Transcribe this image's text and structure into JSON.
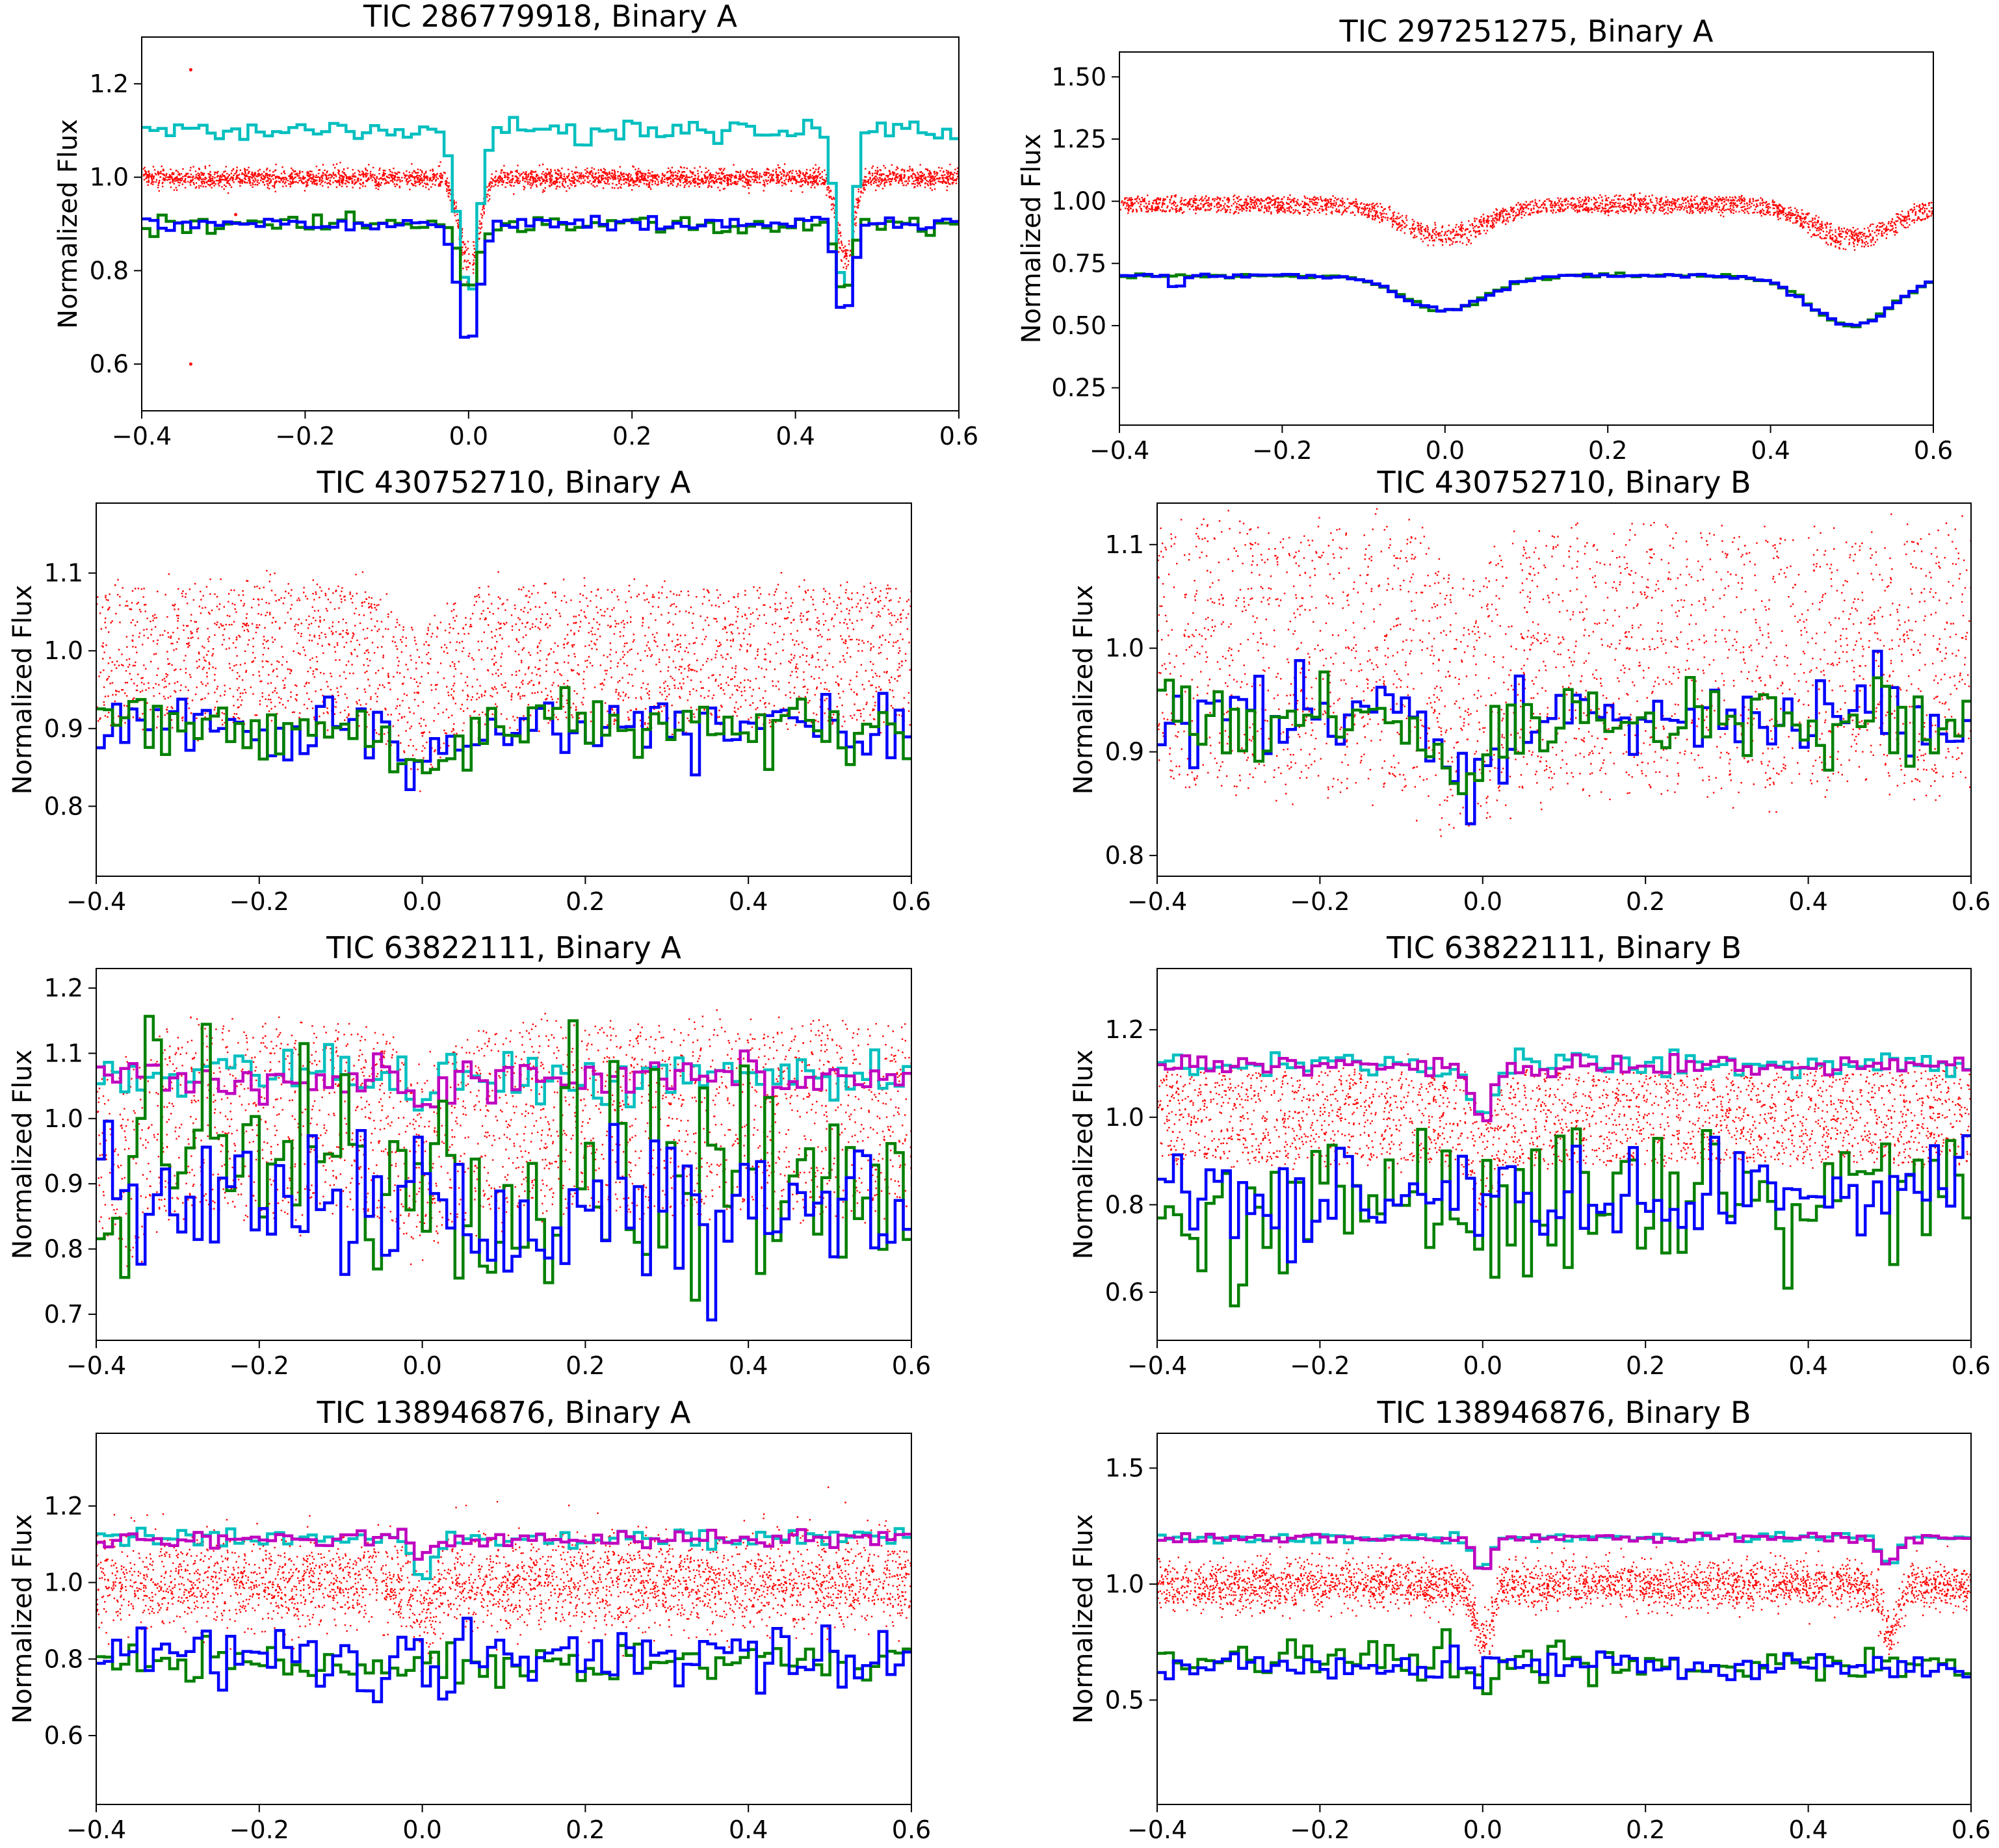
{
  "figure": {
    "colors": {
      "red_points": "#ff0000",
      "cyan": "#00bfbf",
      "blue": "#0000ff",
      "green": "#008000",
      "magenta": "#bf00bf"
    }
  },
  "chart_data": [
    {
      "type": "line",
      "title": "TIC 286779918, Binary A",
      "xlabel": "",
      "ylabel": "Normalized Flux",
      "xlim": [
        -0.4,
        0.6
      ],
      "ylim": [
        0.5,
        1.3
      ],
      "xticks": [
        "−0.4",
        "−0.2",
        "0.0",
        "0.2",
        "0.4",
        "0.6"
      ],
      "yticks": [
        {
          "v": 0.6,
          "label": "0.6"
        },
        {
          "v": 0.8,
          "label": "0.8"
        },
        {
          "v": 1.0,
          "label": "1.0"
        },
        {
          "v": 1.2,
          "label": "1.2"
        }
      ],
      "scatter": {
        "color": "red",
        "center": 1.0,
        "spread": 0.01,
        "bands": 1,
        "dips": [
          {
            "x": 0.0,
            "depth": 0.22,
            "w": 0.012
          },
          {
            "x": 0.46,
            "depth": 0.2,
            "w": 0.01
          }
        ],
        "outliers": [
          {
            "x": -0.34,
            "y": 1.23
          },
          {
            "x": -0.34,
            "y": 0.6
          },
          {
            "x": -0.285,
            "y": 0.92
          }
        ]
      },
      "series": [
        {
          "name": "cyan",
          "base": 1.1,
          "noise": 0.012,
          "dips": [
            {
              "x": 0.0,
              "depth": 0.35,
              "w": 0.012
            },
            {
              "x": 0.46,
              "depth": 0.35,
              "w": 0.01
            }
          ]
        },
        {
          "name": "green",
          "base": 0.9,
          "noise": 0.01,
          "dips": [
            {
              "x": 0.0,
              "depth": 0.15,
              "w": 0.012
            },
            {
              "x": 0.46,
              "depth": 0.15,
              "w": 0.01
            }
          ]
        },
        {
          "name": "blue",
          "base": 0.9,
          "noise": 0.008,
          "dips": [
            {
              "x": 0.0,
              "depth": 0.27,
              "w": 0.012
            },
            {
              "x": 0.46,
              "depth": 0.2,
              "w": 0.01
            }
          ]
        }
      ]
    },
    {
      "type": "line",
      "title": "TIC 297251275, Binary A",
      "xlabel": "",
      "ylabel": "Normalized Flux",
      "xlim": [
        -0.4,
        0.6
      ],
      "ylim": [
        0.1,
        1.6
      ],
      "xticks": [
        "−0.4",
        "−0.2",
        "0.0",
        "0.2",
        "0.4",
        "0.6"
      ],
      "yticks": [
        {
          "v": 0.25,
          "label": "0.25"
        },
        {
          "v": 0.5,
          "label": "0.50"
        },
        {
          "v": 0.75,
          "label": "0.75"
        },
        {
          "v": 1.0,
          "label": "1.00"
        },
        {
          "v": 1.25,
          "label": "1.25"
        },
        {
          "v": 1.5,
          "label": "1.50"
        }
      ],
      "scatter": {
        "color": "red",
        "center": 0.99,
        "spread": 0.015,
        "bands": 3,
        "dips": [
          {
            "x": 0.0,
            "depth": 0.15,
            "w": 0.05
          },
          {
            "x": 0.5,
            "depth": 0.16,
            "w": 0.05
          }
        ],
        "outliers": []
      },
      "series": [
        {
          "name": "green",
          "base": 0.7,
          "noise": 0.004,
          "dips": [
            {
              "x": 0.0,
              "depth": 0.14,
              "w": 0.05
            },
            {
              "x": 0.5,
              "depth": 0.2,
              "w": 0.05
            }
          ]
        },
        {
          "name": "blue",
          "base": 0.7,
          "noise": 0.004,
          "dips": [
            {
              "x": 0.0,
              "depth": 0.14,
              "w": 0.05
            },
            {
              "x": 0.5,
              "depth": 0.2,
              "w": 0.05
            },
            {
              "x": -0.33,
              "depth": 0.1,
              "w": 0.004
            }
          ]
        }
      ]
    },
    {
      "type": "line",
      "title": "TIC 430752710, Binary A",
      "xlabel": "",
      "ylabel": "Normalized Flux",
      "xlim": [
        -0.4,
        0.6
      ],
      "ylim": [
        0.71,
        1.19
      ],
      "xticks": [
        "−0.4",
        "−0.2",
        "0.0",
        "0.2",
        "0.4",
        "0.6"
      ],
      "yticks": [
        {
          "v": 0.8,
          "label": "0.8"
        },
        {
          "v": 0.9,
          "label": "0.9"
        },
        {
          "v": 1.0,
          "label": "1.0"
        },
        {
          "v": 1.1,
          "label": "1.1"
        }
      ],
      "scatter": {
        "color": "red",
        "center": 0.995,
        "spread": 0.022,
        "bands": 6,
        "dips": [
          {
            "x": 0.0,
            "depth": 0.07,
            "w": 0.03
          }
        ],
        "outliers": []
      },
      "series": [
        {
          "name": "blue",
          "base": 0.905,
          "noise": 0.02,
          "dips": [
            {
              "x": 0.0,
              "depth": 0.05,
              "w": 0.03
            }
          ]
        },
        {
          "name": "green",
          "base": 0.9,
          "noise": 0.02,
          "dips": [
            {
              "x": 0.0,
              "depth": 0.05,
              "w": 0.03
            }
          ]
        }
      ]
    },
    {
      "type": "line",
      "title": "TIC 430752710, Binary B",
      "xlabel": "",
      "ylabel": "Normalized Flux",
      "xlim": [
        -0.4,
        0.6
      ],
      "ylim": [
        0.78,
        1.14
      ],
      "xticks": [
        "−0.4",
        "−0.2",
        "0.0",
        "0.2",
        "0.4",
        "0.6"
      ],
      "yticks": [
        {
          "v": 0.8,
          "label": "0.8"
        },
        {
          "v": 0.9,
          "label": "0.9"
        },
        {
          "v": 1.0,
          "label": "1.0"
        },
        {
          "v": 1.1,
          "label": "1.1"
        }
      ],
      "scatter": {
        "color": "red",
        "center": 0.99,
        "spread": 0.03,
        "bands": 6,
        "dips": [
          {
            "x": -0.02,
            "depth": 0.05,
            "w": 0.03
          }
        ],
        "outliers": []
      },
      "series": [
        {
          "name": "blue",
          "base": 0.935,
          "noise": 0.02,
          "dips": [
            {
              "x": -0.02,
              "depth": 0.05,
              "w": 0.03
            }
          ]
        },
        {
          "name": "green",
          "base": 0.93,
          "noise": 0.02,
          "dips": [
            {
              "x": -0.02,
              "depth": 0.06,
              "w": 0.03
            }
          ]
        }
      ]
    },
    {
      "type": "line",
      "title": "TIC 63822111, Binary A",
      "xlabel": "",
      "ylabel": "Normalized Flux",
      "xlim": [
        -0.4,
        0.6
      ],
      "ylim": [
        0.66,
        1.23
      ],
      "xticks": [
        "−0.4",
        "−0.2",
        "0.0",
        "0.2",
        "0.4",
        "0.6"
      ],
      "yticks": [
        {
          "v": 0.7,
          "label": "0.7"
        },
        {
          "v": 0.8,
          "label": "0.8"
        },
        {
          "v": 0.9,
          "label": "0.9"
        },
        {
          "v": 1.0,
          "label": "1.0"
        },
        {
          "v": 1.1,
          "label": "1.1"
        },
        {
          "v": 1.2,
          "label": "1.2"
        }
      ],
      "scatter": {
        "color": "red",
        "center": 1.0,
        "spread": 0.035,
        "bands": 6,
        "dips": [
          {
            "x": -0.36,
            "depth": 0.08,
            "w": 0.025
          },
          {
            "x": 0.0,
            "depth": 0.08,
            "w": 0.025
          }
        ],
        "outliers": []
      },
      "series": [
        {
          "name": "cyan",
          "base": 1.065,
          "noise": 0.018,
          "dips": [
            {
              "x": 0.0,
              "depth": 0.05,
              "w": 0.015
            }
          ]
        },
        {
          "name": "magenta",
          "base": 1.065,
          "noise": 0.015,
          "dips": [
            {
              "x": 0.0,
              "depth": 0.05,
              "w": 0.015
            }
          ]
        },
        {
          "name": "green",
          "base": 0.92,
          "noise": 0.09,
          "dips": []
        },
        {
          "name": "blue",
          "base": 0.86,
          "noise": 0.06,
          "dips": []
        }
      ]
    },
    {
      "type": "line",
      "title": "TIC 63822111, Binary B",
      "xlabel": "",
      "ylabel": "Normalized Flux",
      "xlim": [
        -0.4,
        0.6
      ],
      "ylim": [
        0.49,
        1.34
      ],
      "xticks": [
        "−0.4",
        "−0.2",
        "0.0",
        "0.2",
        "0.4",
        "0.6"
      ],
      "yticks": [
        {
          "v": 0.6,
          "label": "0.6"
        },
        {
          "v": 0.8,
          "label": "0.8"
        },
        {
          "v": 1.0,
          "label": "1.0"
        },
        {
          "v": 1.2,
          "label": "1.2"
        }
      ],
      "scatter": {
        "color": "red",
        "center": 1.0,
        "spread": 0.03,
        "bands": 5,
        "dips": [
          {
            "x": 0.0,
            "depth": 0.12,
            "w": 0.015
          }
        ],
        "outliers": []
      },
      "series": [
        {
          "name": "cyan",
          "base": 1.12,
          "noise": 0.015,
          "dips": [
            {
              "x": 0.0,
              "depth": 0.12,
              "w": 0.015
            }
          ]
        },
        {
          "name": "magenta",
          "base": 1.12,
          "noise": 0.012,
          "dips": [
            {
              "x": 0.0,
              "depth": 0.12,
              "w": 0.015
            }
          ]
        },
        {
          "name": "green",
          "base": 0.8,
          "noise": 0.09,
          "dips": []
        },
        {
          "name": "blue",
          "base": 0.82,
          "noise": 0.06,
          "dips": []
        }
      ]
    },
    {
      "type": "line",
      "title": "TIC 138946876, Binary A",
      "xlabel": "",
      "ylabel": "Normalized Flux",
      "xlim": [
        -0.4,
        0.6
      ],
      "ylim": [
        0.42,
        1.39
      ],
      "xticks": [
        "−0.4",
        "−0.2",
        "0.0",
        "0.2",
        "0.4",
        "0.6"
      ],
      "yticks": [
        {
          "v": 0.6,
          "label": "0.6"
        },
        {
          "v": 0.8,
          "label": "0.8"
        },
        {
          "v": 1.0,
          "label": "1.0"
        },
        {
          "v": 1.2,
          "label": "1.2"
        }
      ],
      "scatter": {
        "color": "red",
        "center": 1.0,
        "spread": 0.06,
        "bands": 1,
        "dips": [
          {
            "x": 0.0,
            "depth": 0.12,
            "w": 0.01
          }
        ],
        "outliers": []
      },
      "series": [
        {
          "name": "cyan",
          "base": 1.115,
          "noise": 0.012,
          "dips": [
            {
              "x": 0.0,
              "depth": 0.1,
              "w": 0.01
            }
          ]
        },
        {
          "name": "magenta",
          "base": 1.115,
          "noise": 0.012,
          "dips": [
            {
              "x": 0.0,
              "depth": 0.06,
              "w": 0.01
            }
          ]
        },
        {
          "name": "green",
          "base": 0.79,
          "noise": 0.03,
          "dips": []
        },
        {
          "name": "blue",
          "base": 0.8,
          "noise": 0.045,
          "dips": []
        }
      ]
    },
    {
      "type": "line",
      "title": "TIC 138946876, Binary B",
      "xlabel": "",
      "ylabel": "Normalized Flux",
      "xlim": [
        -0.4,
        0.6
      ],
      "ylim": [
        0.05,
        1.65
      ],
      "xticks": [
        "−0.4",
        "−0.2",
        "0.0",
        "0.2",
        "0.4",
        "0.6"
      ],
      "yticks": [
        {
          "v": 0.5,
          "label": "0.5"
        },
        {
          "v": 1.0,
          "label": "1.0"
        },
        {
          "v": 1.5,
          "label": "1.5"
        }
      ],
      "scatter": {
        "color": "red",
        "center": 1.0,
        "spread": 0.05,
        "bands": 1,
        "dips": [
          {
            "x": 0.0,
            "depth": 0.3,
            "w": 0.01
          },
          {
            "x": 0.5,
            "depth": 0.25,
            "w": 0.01
          }
        ],
        "outliers": []
      },
      "series": [
        {
          "name": "cyan",
          "base": 1.2,
          "noise": 0.01,
          "dips": [
            {
              "x": 0.0,
              "depth": 0.15,
              "w": 0.01
            },
            {
              "x": 0.5,
              "depth": 0.12,
              "w": 0.01
            }
          ]
        },
        {
          "name": "magenta",
          "base": 1.2,
          "noise": 0.01,
          "dips": [
            {
              "x": 0.0,
              "depth": 0.15,
              "w": 0.01
            },
            {
              "x": 0.5,
              "depth": 0.12,
              "w": 0.01
            }
          ]
        },
        {
          "name": "green",
          "base": 0.66,
          "noise": 0.04,
          "dips": [
            {
              "x": 0.0,
              "depth": 0.06,
              "w": 0.01
            }
          ]
        },
        {
          "name": "blue",
          "base": 0.65,
          "noise": 0.035,
          "dips": [
            {
              "x": 0.0,
              "depth": 0.08,
              "w": 0.01
            }
          ]
        }
      ]
    }
  ]
}
